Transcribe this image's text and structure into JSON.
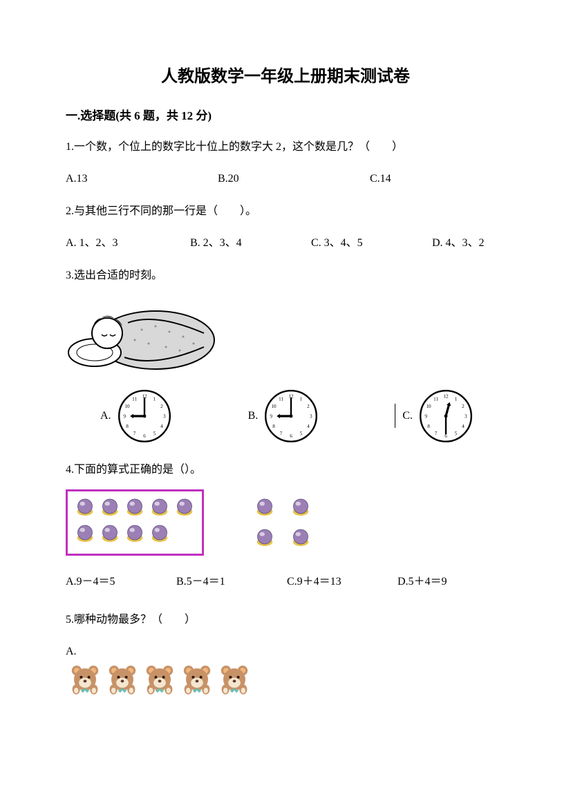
{
  "title": "人教版数学一年级上册期末测试卷",
  "section1": {
    "header": "一.选择题(共 6 题，共 12 分)",
    "q1": {
      "text": "1.一个数，个位上的数字比十位上的数字大 2，这个数是几？（　　）",
      "opts": [
        "A.13",
        "B.20",
        "C.14"
      ]
    },
    "q2": {
      "text": "2.与其他三行不同的那一行是（　　）。",
      "opts": [
        "A. 1、2、3",
        "B. 2、3、4",
        "C. 3、4、5",
        "D. 4、3、2"
      ]
    },
    "q3": {
      "text": "3.选出合适的时刻。",
      "labels": [
        "A.",
        "B.",
        "C."
      ],
      "clocks": [
        {
          "hour": 9,
          "minute": 0
        },
        {
          "hour": 9,
          "minute": 0
        },
        {
          "hour": 12,
          "minute": 30
        }
      ]
    },
    "q4": {
      "text": "4.下面的算式正确的是（）。",
      "box1_color": "#c030c0",
      "box2_color": "#ffffff",
      "ball_fill": "#9b7fb5",
      "ball_shadow": "#e6c34a",
      "rows1": [
        5,
        4
      ],
      "rows2": [
        2,
        2
      ],
      "opts": [
        "A.9－4＝5",
        "B.5－4＝1",
        "C.9＋4＝13",
        "D.5＋4＝9"
      ]
    },
    "q5": {
      "text": "5.哪种动物最多？（　　）",
      "optA_label": "A.",
      "bear_count": 5,
      "bear_colors": {
        "body": "#c89268",
        "ear": "#f2b77d",
        "bow": "#6bbfb0",
        "muzzle": "#f5e6d0",
        "nose": "#5a3a28"
      }
    }
  },
  "clock_style": {
    "face": "#ffffff",
    "stroke": "#000000",
    "hand": "#000000"
  }
}
